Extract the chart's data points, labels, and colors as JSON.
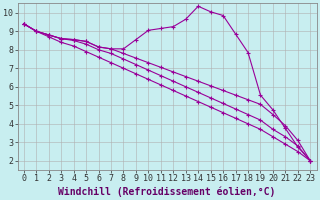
{
  "xlabel": "Windchill (Refroidissement éolien,°C)",
  "background_color": "#c8eef0",
  "grid_color": "#b0b0b0",
  "line_color": "#990099",
  "xlim": [
    -0.5,
    23.5
  ],
  "ylim": [
    1.5,
    10.5
  ],
  "xticks": [
    0,
    1,
    2,
    3,
    4,
    5,
    6,
    7,
    8,
    9,
    10,
    11,
    12,
    13,
    14,
    15,
    16,
    17,
    18,
    19,
    20,
    21,
    22,
    23
  ],
  "yticks": [
    2,
    3,
    4,
    5,
    6,
    7,
    8,
    9,
    10
  ],
  "line1_x": [
    0,
    1,
    2,
    3,
    4,
    5,
    6,
    7,
    8,
    9,
    10,
    11,
    12,
    13,
    14,
    15,
    16,
    17,
    18,
    19,
    20,
    21,
    22,
    23
  ],
  "line1_y": [
    9.4,
    9.0,
    8.8,
    8.6,
    8.55,
    8.45,
    8.15,
    8.05,
    8.05,
    8.55,
    9.05,
    9.15,
    9.25,
    9.65,
    10.35,
    10.05,
    9.85,
    8.85,
    7.85,
    5.55,
    4.75,
    3.75,
    2.75,
    2.0
  ],
  "line2_x": [
    0,
    1,
    2,
    3,
    4,
    5,
    6,
    7,
    8,
    9,
    10,
    11,
    12,
    13,
    14,
    15,
    16,
    17,
    18,
    19,
    20,
    21,
    22,
    23
  ],
  "line2_y": [
    9.4,
    9.0,
    8.8,
    8.6,
    8.55,
    8.45,
    8.15,
    8.05,
    7.8,
    7.55,
    7.3,
    7.05,
    6.8,
    6.55,
    6.3,
    6.05,
    5.8,
    5.55,
    5.3,
    5.05,
    4.5,
    3.9,
    3.1,
    2.0
  ],
  "line3_x": [
    0,
    1,
    2,
    3,
    4,
    5,
    6,
    7,
    8,
    9,
    10,
    11,
    12,
    13,
    14,
    15,
    16,
    17,
    18,
    19,
    20,
    21,
    22,
    23
  ],
  "line3_y": [
    9.4,
    9.0,
    8.8,
    8.6,
    8.5,
    8.3,
    8.0,
    7.8,
    7.5,
    7.2,
    6.9,
    6.6,
    6.3,
    6.0,
    5.7,
    5.4,
    5.1,
    4.8,
    4.5,
    4.2,
    3.7,
    3.3,
    2.8,
    2.0
  ],
  "line4_x": [
    0,
    1,
    2,
    3,
    4,
    5,
    6,
    7,
    8,
    9,
    10,
    11,
    12,
    13,
    14,
    15,
    16,
    17,
    18,
    19,
    20,
    21,
    22,
    23
  ],
  "line4_y": [
    9.4,
    9.0,
    8.7,
    8.4,
    8.2,
    7.9,
    7.6,
    7.3,
    7.0,
    6.7,
    6.4,
    6.1,
    5.8,
    5.5,
    5.2,
    4.9,
    4.6,
    4.3,
    4.0,
    3.7,
    3.3,
    2.9,
    2.5,
    2.0
  ],
  "tick_fontsize": 6,
  "label_fontsize": 7,
  "marker": "+"
}
